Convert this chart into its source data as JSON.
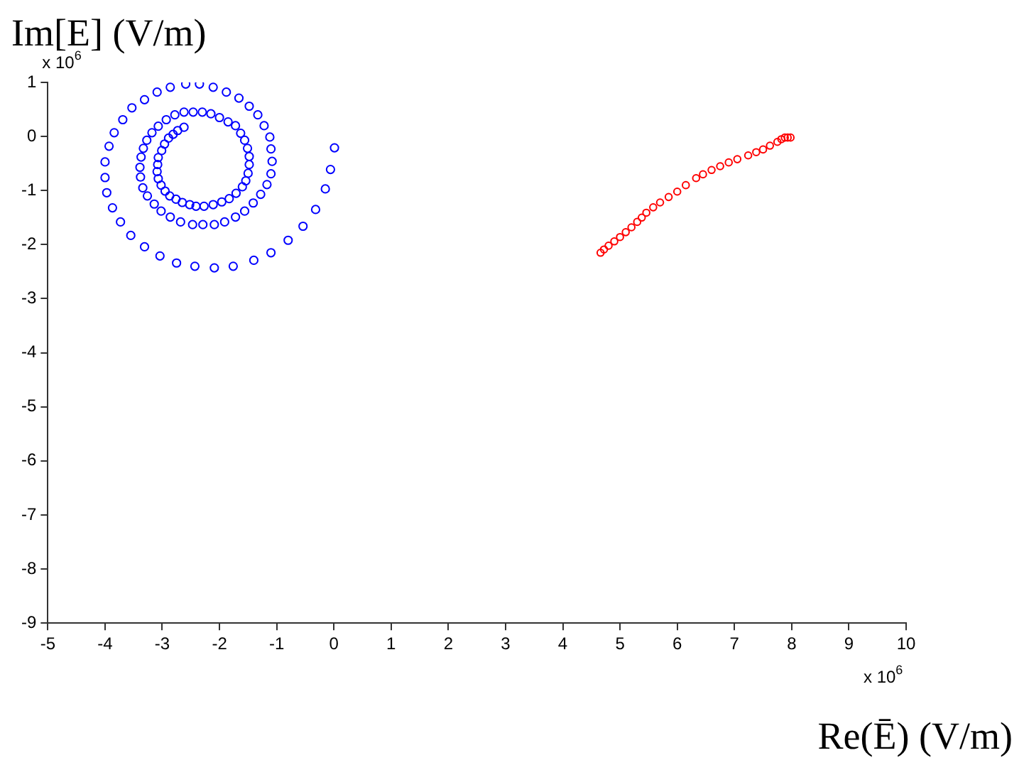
{
  "chart_data": {
    "type": "scatter",
    "xlabel": "Re(Ē) (V/m)",
    "ylabel": "Im[E] (V/m)",
    "annotations": [
      "x 10$^{6}$",
      "x 10$^{6}$"
    ],
    "xlim": [
      -5,
      10
    ],
    "xticks": [
      -5,
      -4,
      -3,
      -2,
      -1,
      0,
      1,
      2,
      3,
      4,
      5,
      6,
      7,
      8,
      9,
      10
    ],
    "ylim": [
      -9,
      1
    ],
    "yticks": [
      -9,
      -8,
      -7,
      -6,
      -5,
      -4,
      -3,
      -2,
      -1,
      0,
      1
    ],
    "grid": false,
    "legend": false,
    "marker": "circle",
    "series": [
      {
        "color": "#0000ff",
        "x": [
          0.01,
          -0.06,
          -0.15,
          -0.32,
          -0.54,
          -0.8,
          -1.1,
          -1.4,
          -1.76,
          -2.09,
          -2.43,
          -2.75,
          -3.04,
          -3.31,
          -3.55,
          -3.73,
          -3.87,
          -3.97,
          -4.0,
          -4.0,
          -3.93,
          -3.84,
          -3.69,
          -3.53,
          -3.31,
          -3.09,
          -2.86,
          -2.59,
          -2.35,
          -2.11,
          -1.88,
          -1.66,
          -1.48,
          -1.33,
          -1.22,
          -1.12,
          -1.1,
          -1.08,
          -1.1,
          -1.17,
          -1.28,
          -1.41,
          -1.56,
          -1.72,
          -1.91,
          -2.09,
          -2.29,
          -2.47,
          -2.68,
          -2.86,
          -3.02,
          -3.14,
          -3.26,
          -3.34,
          -3.38,
          -3.39,
          -3.37,
          -3.33,
          -3.27,
          -3.18,
          -3.07,
          -2.93,
          -2.78,
          -2.62,
          -2.46,
          -2.3,
          -2.15,
          -2.0,
          -1.85,
          -1.72,
          -1.63,
          -1.56,
          -1.51,
          -1.48,
          -1.48,
          -1.5,
          -1.54,
          -1.6,
          -1.71,
          -1.83,
          -1.96,
          -2.11,
          -2.27,
          -2.41,
          -2.52,
          -2.65,
          -2.76,
          -2.87,
          -2.95,
          -3.02,
          -3.07,
          -3.09,
          -3.08,
          -3.07,
          -3.01,
          -2.96,
          -2.89,
          -2.81,
          -2.73,
          -2.62
        ],
        "values": [
          -0.21,
          -0.61,
          -0.97,
          -1.35,
          -1.66,
          -1.92,
          -2.15,
          -2.29,
          -2.4,
          -2.43,
          -2.4,
          -2.34,
          -2.21,
          -2.04,
          -1.83,
          -1.58,
          -1.32,
          -1.04,
          -0.76,
          -0.47,
          -0.18,
          0.07,
          0.31,
          0.53,
          0.68,
          0.82,
          0.91,
          0.97,
          0.97,
          0.91,
          0.82,
          0.71,
          0.56,
          0.4,
          0.2,
          -0.01,
          -0.23,
          -0.46,
          -0.69,
          -0.89,
          -1.07,
          -1.23,
          -1.38,
          -1.49,
          -1.58,
          -1.63,
          -1.63,
          -1.63,
          -1.58,
          -1.49,
          -1.38,
          -1.25,
          -1.1,
          -0.95,
          -0.75,
          -0.57,
          -0.38,
          -0.22,
          -0.07,
          0.07,
          0.19,
          0.31,
          0.4,
          0.45,
          0.45,
          0.45,
          0.42,
          0.35,
          0.27,
          0.2,
          0.06,
          -0.07,
          -0.22,
          -0.37,
          -0.52,
          -0.68,
          -0.82,
          -0.93,
          -1.05,
          -1.15,
          -1.21,
          -1.26,
          -1.29,
          -1.29,
          -1.26,
          -1.22,
          -1.16,
          -1.1,
          -1.01,
          -0.9,
          -0.78,
          -0.65,
          -0.52,
          -0.39,
          -0.26,
          -0.14,
          -0.03,
          0.04,
          0.11,
          0.17
        ]
      },
      {
        "color": "#ff0000",
        "x": [
          4.66,
          4.72,
          4.8,
          4.9,
          5.0,
          5.1,
          5.2,
          5.3,
          5.38,
          5.46,
          5.58,
          5.7,
          5.85,
          6.0,
          6.15,
          6.33,
          6.45,
          6.6,
          6.75,
          6.9,
          7.05,
          7.24,
          7.38,
          7.5,
          7.62,
          7.75,
          7.82,
          7.88,
          7.93,
          7.98
        ],
        "values": [
          -2.15,
          -2.09,
          -2.02,
          -1.94,
          -1.86,
          -1.77,
          -1.68,
          -1.58,
          -1.5,
          -1.41,
          -1.31,
          -1.22,
          -1.12,
          -1.02,
          -0.9,
          -0.77,
          -0.7,
          -0.62,
          -0.55,
          -0.48,
          -0.42,
          -0.35,
          -0.29,
          -0.24,
          -0.17,
          -0.1,
          -0.05,
          -0.02,
          -0.02,
          -0.02
        ]
      }
    ]
  }
}
